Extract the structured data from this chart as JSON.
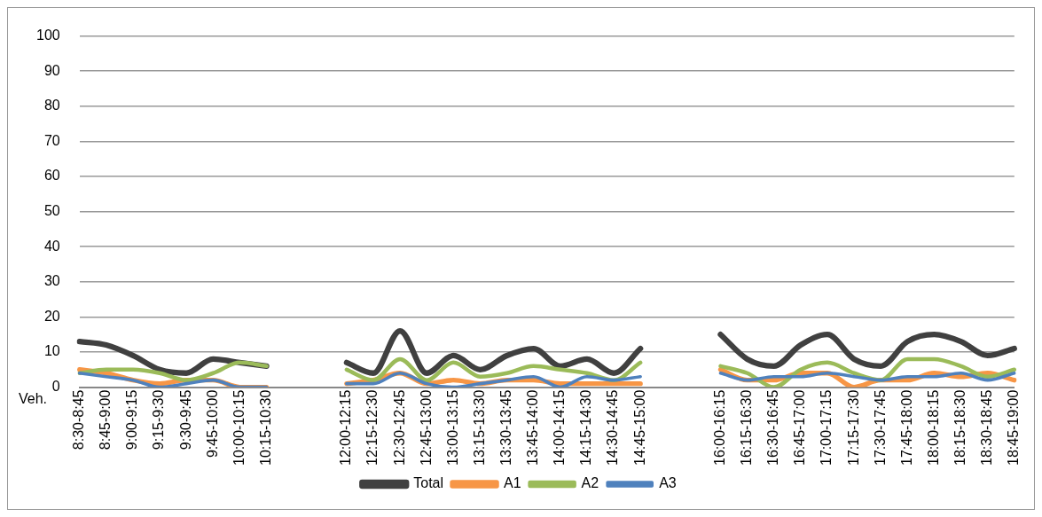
{
  "chart_data": {
    "type": "line",
    "ylabel": "Veh.",
    "categories": [
      "8:30-8:45",
      "8:45-9:00",
      "9:00-9:15",
      "9:15-9:30",
      "9:30-9:45",
      "9:45-10:00",
      "10:00-10:15",
      "10:15-10:30",
      null,
      null,
      "12:00-12:15",
      "12:15-12:30",
      "12:30-12:45",
      "12:45-13:00",
      "13:00-13:15",
      "13:15-13:30",
      "13:30-13:45",
      "13:45-14:00",
      "14:00-14:15",
      "14:15-14:30",
      "14:30-14:45",
      "14:45-15:00",
      null,
      null,
      "16:00-16:15",
      "16:15-16:30",
      "16:30-16:45",
      "16:45-17:00",
      "17:00-17:15",
      "17:15-17:30",
      "17:30-17:45",
      "17:45-18:00",
      "18:00-18:15",
      "18:15-18:30",
      "18:30-18:45",
      "18:45-19:00"
    ],
    "series": [
      {
        "name": "Total",
        "color": "#404040",
        "values": [
          13,
          12,
          9,
          5,
          4,
          8,
          7,
          6,
          null,
          null,
          7,
          4,
          16,
          4,
          9,
          5,
          9,
          11,
          6,
          8,
          4,
          11,
          null,
          null,
          15,
          8,
          6,
          12,
          15,
          8,
          6,
          13,
          15,
          13,
          9,
          11
        ]
      },
      {
        "name": "A1",
        "color": "#f79646",
        "values": [
          5,
          4,
          2,
          1,
          2,
          2,
          0,
          0,
          null,
          null,
          1,
          2,
          4,
          1,
          2,
          1,
          2,
          2,
          1,
          1,
          1,
          1,
          null,
          null,
          5,
          2,
          2,
          4,
          4,
          0,
          2,
          2,
          4,
          3,
          4,
          2
        ]
      },
      {
        "name": "A2",
        "color": "#9bbb59",
        "values": [
          4,
          5,
          5,
          4,
          2,
          4,
          7,
          6,
          null,
          null,
          5,
          2,
          8,
          2,
          7,
          3,
          4,
          6,
          5,
          4,
          2,
          7,
          null,
          null,
          6,
          4,
          0,
          5,
          7,
          4,
          2,
          8,
          8,
          6,
          3,
          5
        ]
      },
      {
        "name": "A3",
        "color": "#4f81bd",
        "values": [
          4,
          3,
          2,
          0,
          1,
          2,
          0,
          0,
          null,
          null,
          1,
          1,
          4,
          1,
          0,
          1,
          2,
          3,
          0,
          3,
          2,
          3,
          null,
          null,
          4,
          2,
          3,
          3,
          4,
          3,
          2,
          3,
          3,
          4,
          2,
          4
        ]
      }
    ],
    "ylim": [
      0,
      100
    ],
    "yticks": [
      0,
      10,
      20,
      30,
      40,
      50,
      60,
      70,
      80,
      90,
      100
    ],
    "grid": "y",
    "legend": "bottom",
    "marker": "none",
    "line_style": "solid"
  }
}
